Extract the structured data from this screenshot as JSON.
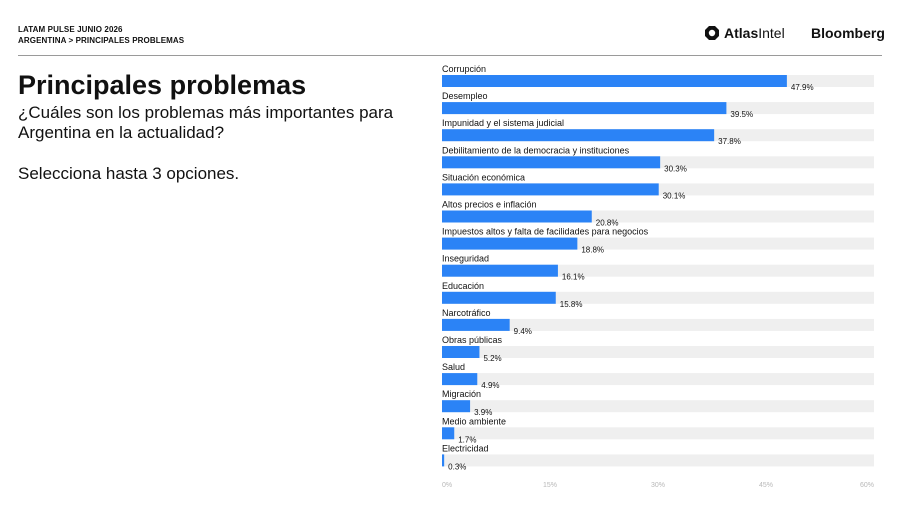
{
  "header": {
    "line1": "LATAM PULSE JUNIO 2026",
    "line2": "ARGENTINA > PRINCIPALES PROBLEMAS",
    "brand_atlas_bold": "Atlas",
    "brand_atlas_rest": "Intel",
    "brand_bloomberg": "Bloomberg"
  },
  "left": {
    "title": "Principales problemas",
    "subtitle": "¿Cuáles son los problemas más importantes para Argentina en la actualidad?",
    "instruction": "Selecciona hasta 3 opciones."
  },
  "colors": {
    "bar": "#2b83f6",
    "track": "#efefef",
    "ticks": "#b8b8b8"
  },
  "chart_data": {
    "type": "bar",
    "orientation": "horizontal",
    "categories": [
      "Corrupción",
      "Desempleo",
      "Impunidad y el sistema judicial",
      "Debilitamiento de la democracia y instituciones",
      "Situación económica",
      "Altos precios e inflación",
      "Impuestos altos y falta de facilidades para negocios",
      "Inseguridad",
      "Educación",
      "Narcotráfico",
      "Obras públicas",
      "Salud",
      "Migración",
      "Medio ambiente",
      "Electricidad"
    ],
    "values": [
      47.9,
      39.5,
      37.8,
      30.3,
      30.1,
      20.8,
      18.8,
      16.1,
      15.8,
      9.4,
      5.2,
      4.9,
      3.9,
      1.7,
      0.3
    ],
    "value_labels": [
      "47.9%",
      "39.5%",
      "37.8%",
      "30.3%",
      "30.1%",
      "20.8%",
      "18.8%",
      "16.1%",
      "15.8%",
      "9.4%",
      "5.2%",
      "4.9%",
      "3.9%",
      "1.7%",
      "0.3%"
    ],
    "xlim": [
      0,
      60
    ],
    "xticks": [
      0,
      15,
      30,
      45,
      60
    ],
    "xtick_labels": [
      "0%",
      "15%",
      "30%",
      "45%",
      "60%"
    ],
    "grid": false
  }
}
